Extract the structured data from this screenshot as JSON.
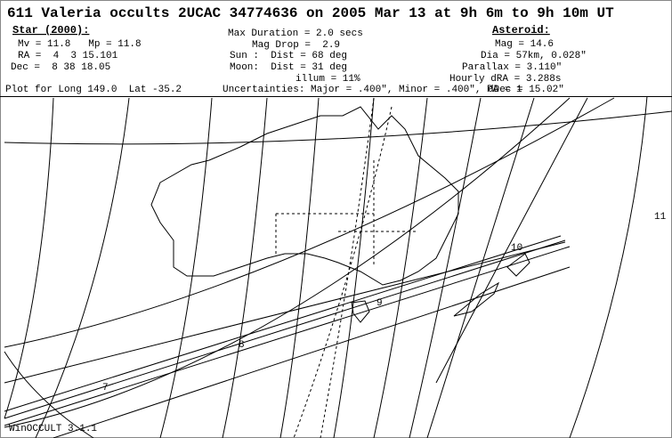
{
  "title": "611 Valeria occults 2UCAC 34774636 on 2005 Mar 13 at 9h 6m to 9h 10m UT",
  "star": {
    "heading": "Star (2000):",
    "lines": [
      "Mv = 11.8   Mp = 11.8",
      "RA =  4  3 15.101",
      "Dec =  8 38 18.05"
    ]
  },
  "event": {
    "lines": [
      "Max Duration = 2.0 secs",
      "Mag Drop =  2.9",
      "Sun :  Dist = 68 deg",
      "Moon:  Dist = 31 deg",
      "illum = 11%"
    ]
  },
  "asteroid": {
    "heading": "Asteroid:",
    "lines": [
      "Mag = 14.6",
      "Dia = 57km, 0.028\"",
      "Parallax = 3.110\"",
      "Hourly dRA = 3.288s",
      "dDec = 15.02\""
    ]
  },
  "plot_for": "Plot for Long 149.0  Lat -35.2",
  "uncertainties": "Uncertainties: Major = .400\", Minor = .400\", PA = 1",
  "time_labels": [
    "7",
    "8",
    "9",
    "10",
    "11"
  ],
  "footer": "WinOCCULT 3.1.1"
}
